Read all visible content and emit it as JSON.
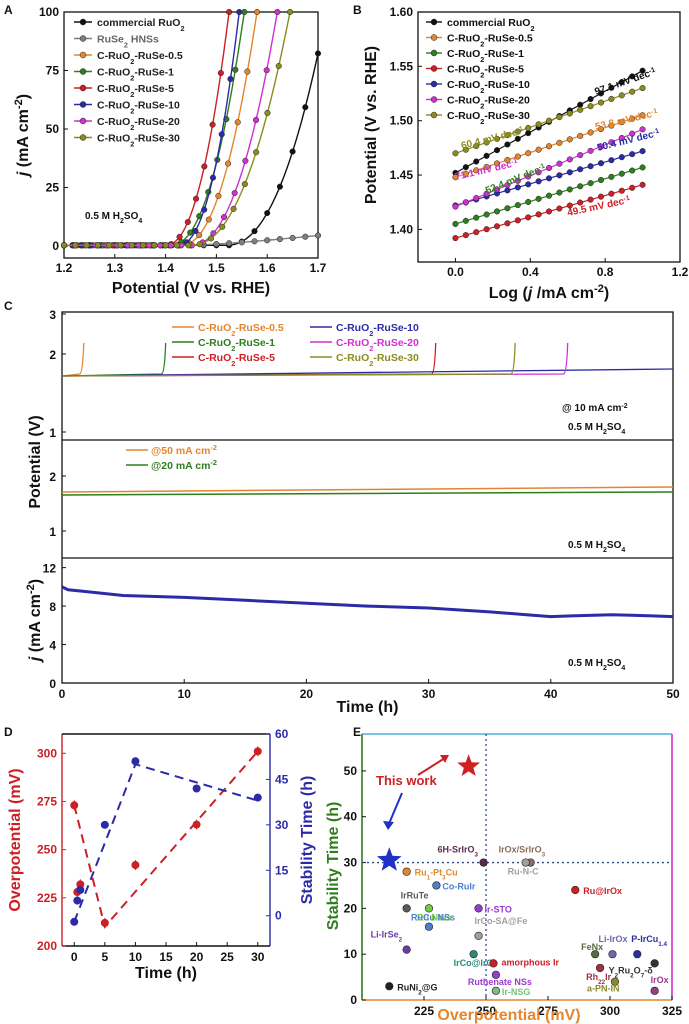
{
  "chart_data": [
    {
      "panel": "A",
      "type": "line",
      "xlabel": "Potential (V vs. RHE)",
      "ylabel": "j (mA cm-2)",
      "ylabel_parts": [
        "j",
        " (mA cm",
        "-2",
        ")"
      ],
      "xlim": [
        1.2,
        1.7
      ],
      "ylim": [
        0,
        100
      ],
      "xticks": [
        "1.2",
        "1.3",
        "1.4",
        "1.5",
        "1.6",
        "1.7"
      ],
      "yticks": [
        "0",
        "25",
        "50",
        "75",
        "100"
      ],
      "annotation": "0.5 M H2SO4",
      "series": [
        {
          "name": "commercial RuO2",
          "color": "#111111",
          "onset": 1.52,
          "end": 1.7,
          "endval": 82
        },
        {
          "name": "RuSe2 HNSs",
          "color": "#7f7f7f",
          "onset": 1.45,
          "end": 1.7,
          "endval": 4.5,
          "flat": true
        },
        {
          "name": "C-RuO2-RuSe-0.5",
          "color": "#e3862d",
          "onset": 1.43,
          "end": 1.58,
          "endval": 100
        },
        {
          "name": "C-RuO2-RuSe-1",
          "color": "#2e7d1e",
          "onset": 1.41,
          "end": 1.555,
          "endval": 100
        },
        {
          "name": "C-RuO2-RuSe-5",
          "color": "#cc2026",
          "onset": 1.4,
          "end": 1.525,
          "endval": 100
        },
        {
          "name": "C-RuO2-RuSe-10",
          "color": "#2b2ba8",
          "onset": 1.425,
          "end": 1.545,
          "endval": 100
        },
        {
          "name": "C-RuO2-RuSe-20",
          "color": "#d12fd1",
          "onset": 1.45,
          "end": 1.62,
          "endval": 100
        },
        {
          "name": "C-RuO2-RuSe-30",
          "color": "#8c8c1e",
          "onset": 1.45,
          "end": 1.645,
          "endval": 100
        }
      ]
    },
    {
      "panel": "B",
      "type": "line",
      "xlabel": "Log (j /mA cm-2)",
      "ylabel": "Potential (V vs. RHE)",
      "xlim": [
        -0.2,
        1.2
      ],
      "ylim": [
        1.37,
        1.6
      ],
      "xticks": [
        "0.0",
        "0.4",
        "0.8",
        "1.2"
      ],
      "yticks": [
        "1.40",
        "1.45",
        "1.50",
        "1.55",
        "1.60"
      ],
      "series": [
        {
          "name": "commercial RuO2",
          "color": "#111111",
          "y0": 1.452,
          "y1": 1.546,
          "slope_label": "97.1 mV dec-1"
        },
        {
          "name": "C-RuO2-RuSe-0.5",
          "color": "#e3862d",
          "y0": 1.448,
          "y1": 1.505,
          "slope_label": "53.8 mV dec-1"
        },
        {
          "name": "C-RuO2-RuSe-1",
          "color": "#2e7d1e",
          "y0": 1.405,
          "y1": 1.457,
          "slope_label": "52.4 mV dec-1"
        },
        {
          "name": "C-RuO2-RuSe-5",
          "color": "#cc2026",
          "y0": 1.392,
          "y1": 1.441,
          "slope_label": "49.5 mV dec-1"
        },
        {
          "name": "C-RuO2-RuSe-10",
          "color": "#2b2ba8",
          "y0": 1.422,
          "y1": 1.472,
          "slope_label": "50.4 mV dec-1"
        },
        {
          "name": "C-RuO2-RuSe-20",
          "color": "#d12fd1",
          "y0": 1.421,
          "y1": 1.492,
          "slope_label": "71.1 mV dec-1"
        },
        {
          "name": "C-RuO2-RuSe-30",
          "color": "#8c8c1e",
          "y0": 1.47,
          "y1": 1.53,
          "slope_label": "60.4 mV dec-1"
        }
      ]
    },
    {
      "panel": "C",
      "type": "line",
      "xlabel": "Time (h)",
      "ylabel_top": "Potential (V)",
      "ylabel_bottom": "j (mA cm-2)",
      "xlim": [
        0,
        50
      ],
      "xticks": [
        "0",
        "10",
        "20",
        "30",
        "40",
        "50"
      ],
      "top": {
        "ylim": [
          1,
          3
        ],
        "yticks": [
          "1",
          "2",
          "3"
        ],
        "annotation1": "@ 10 mA cm-2",
        "annotation2": "0.5 M H2SO4",
        "series": [
          {
            "name": "C-RuO2-RuSe-0.5",
            "color": "#e3862d",
            "end": 1.7
          },
          {
            "name": "C-RuO2-RuSe-1",
            "color": "#2e7d1e",
            "end": 8.4
          },
          {
            "name": "C-RuO2-RuSe-5",
            "color": "#cc2026",
            "end": 30.5
          },
          {
            "name": "C-RuO2-RuSe-10",
            "color": "#2b2ba8",
            "end": 50
          },
          {
            "name": "C-RuO2-RuSe-20",
            "color": "#d12fd1",
            "end": 41.3
          },
          {
            "name": "C-RuO2-RuSe-30",
            "color": "#8c8c1e",
            "end": 37.0
          }
        ]
      },
      "middle": {
        "yticks": [
          "1",
          "2"
        ],
        "annotation": "0.5 M H2SO4",
        "series": [
          {
            "name": "@50 mA cm-2",
            "color": "#e3862d",
            "start": 1.55,
            "finish": 1.64
          },
          {
            "name": "@20 mA cm-2",
            "color": "#2e7d1e",
            "start": 1.5,
            "finish": 1.55
          }
        ]
      },
      "bottom": {
        "ylim": [
          0,
          13
        ],
        "yticks": [
          "0",
          "4",
          "8",
          "12"
        ],
        "annotation": "0.5 M H2SO4",
        "color": "#2b2ba8",
        "series_x": [
          0,
          0.5,
          2,
          5,
          10,
          15,
          20,
          25,
          30,
          35,
          38,
          40,
          42,
          45,
          48,
          50
        ],
        "series_y": [
          10.0,
          9.7,
          9.5,
          9.1,
          8.9,
          8.6,
          8.3,
          8.0,
          7.8,
          7.4,
          7.1,
          6.9,
          7.0,
          7.1,
          7.0,
          6.9
        ]
      }
    },
    {
      "panel": "D",
      "type": "scatter",
      "xlabel": "Time (h)",
      "ylabel_left": "Overpotential (mV)",
      "ylabel_right": "Stability Time (h)",
      "xlim": [
        -2,
        32
      ],
      "ylim_left": [
        200,
        310
      ],
      "ylim_right": [
        -10,
        60
      ],
      "xticks": [
        "0",
        "5",
        "10",
        "15",
        "20",
        "25",
        "30"
      ],
      "yticks_left": [
        "200",
        "225",
        "250",
        "275",
        "300"
      ],
      "yticks_right": [
        "0",
        "15",
        "30",
        "45",
        "60"
      ],
      "overpotential": {
        "x": [
          0,
          0.5,
          1,
          5,
          10,
          20,
          30
        ],
        "y": [
          273,
          228,
          232,
          212,
          242,
          263,
          301
        ],
        "color": "#cc2026"
      },
      "stability": {
        "x": [
          0,
          0.5,
          1,
          5,
          10,
          20,
          30
        ],
        "y": [
          -2,
          5,
          8.5,
          30,
          51,
          42,
          39
        ],
        "color": "#2b2ba8"
      },
      "trend_overpotential": {
        "x": [
          0,
          5,
          30
        ],
        "y": [
          273,
          210,
          301
        ]
      },
      "trend_stability": {
        "x": [
          0,
          10,
          30
        ],
        "y": [
          -2,
          50,
          38
        ]
      }
    },
    {
      "panel": "E",
      "type": "scatter",
      "xlabel": "Overpotential (mV)",
      "ylabel": "Stability Time (h)",
      "xlim": [
        200,
        325
      ],
      "ylim": [
        0,
        55
      ],
      "xticks": [
        "225",
        "250",
        "275",
        "300",
        "325"
      ],
      "yticks": [
        "0",
        "10",
        "20",
        "30",
        "40",
        "50"
      ],
      "this_work_label": "This work",
      "points": [
        {
          "label": "6H-SrIrO3",
          "x": 249,
          "y": 30,
          "color": "#5a2a4a"
        },
        {
          "label": "IrOx/SrIrO3",
          "x": 268,
          "y": 30,
          "color": "#8a6e5a"
        },
        {
          "label": "Ru1-Pt3Cu",
          "x": 218,
          "y": 28,
          "color": "#e3862d"
        },
        {
          "label": "Ru-N-C",
          "x": 266,
          "y": 30,
          "color": "#a0a0a0"
        },
        {
          "label": "Co-RuIr",
          "x": 230,
          "y": 25,
          "color": "#4a7fd1"
        },
        {
          "label": "Ru@IrOx",
          "x": 286,
          "y": 24,
          "color": "#cc2026"
        },
        {
          "label": "IrRuTe",
          "x": 218,
          "y": 20,
          "color": "#5a5a5a"
        },
        {
          "label": "Ru NWs",
          "x": 227,
          "y": 20,
          "color": "#6ad13a"
        },
        {
          "label": "Ir-STO",
          "x": 247,
          "y": 20,
          "color": "#9a3ad1"
        },
        {
          "label": "RuCu NSs",
          "x": 227,
          "y": 16,
          "color": "#4a7fd1"
        },
        {
          "label": "Li-IrSe2",
          "x": 218,
          "y": 11,
          "color": "#6a3aa8"
        },
        {
          "label": "IrCo-SA@Fe",
          "x": 247,
          "y": 14,
          "color": "#a0a0a0"
        },
        {
          "label": "FeNx",
          "x": 294,
          "y": 10,
          "color": "#5a6a3a"
        },
        {
          "label": "Li-IrOx",
          "x": 301,
          "y": 10,
          "color": "#6a6aa8"
        },
        {
          "label": "P-IrCu1.4",
          "x": 311,
          "y": 10,
          "color": "#2b2ba8"
        },
        {
          "label": "IrCo@IrO",
          "x": 245,
          "y": 10,
          "color": "#2a8a7a"
        },
        {
          "label": "amorphous Ir",
          "x": 253,
          "y": 8,
          "color": "#cc2026"
        },
        {
          "label": "Rh22Ir78",
          "x": 296,
          "y": 7,
          "color": "#a03040"
        },
        {
          "label": "Y2Ru2O7-δ",
          "x": 318,
          "y": 8,
          "color": "#333333"
        },
        {
          "label": "Ruthenate NSs",
          "x": 254,
          "y": 5.5,
          "color": "#9a3ad1"
        },
        {
          "label": "a-PN-IN",
          "x": 302,
          "y": 4,
          "color": "#8a8a2a"
        },
        {
          "label": "IrOx",
          "x": 318,
          "y": 2,
          "color": "#9a3a8a"
        },
        {
          "label": "RuNi2@G",
          "x": 211,
          "y": 3,
          "color": "#222222"
        },
        {
          "label": "Ir-NSG",
          "x": 254,
          "y": 2,
          "color": "#7ac07a"
        }
      ],
      "blue_star": {
        "x": 211,
        "y": 30.5
      },
      "red_star": {
        "x": 243,
        "y": 51
      }
    }
  ],
  "panel_letters": [
    "A",
    "B",
    "C",
    "D",
    "E"
  ]
}
